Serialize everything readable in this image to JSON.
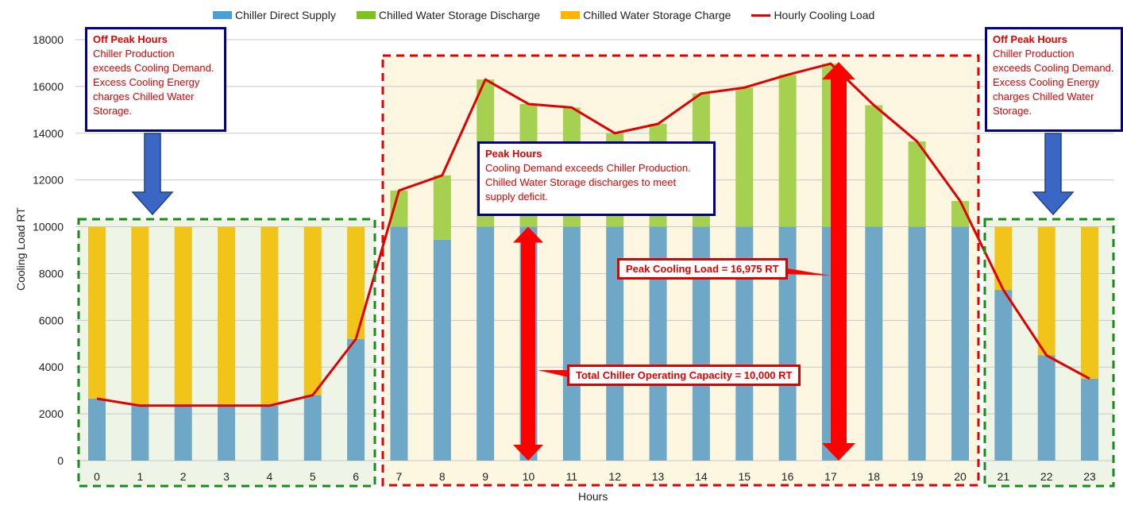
{
  "legend": [
    {
      "label": "Chiller Direct Supply",
      "color": "#6fa8c7"
    },
    {
      "label": "Chilled Water Storage Discharge",
      "color": "#9acd32"
    },
    {
      "label": "Chilled Water Storage Charge",
      "color": "#f0c419"
    },
    {
      "label": "Hourly Cooling Load",
      "color": "#e00000"
    }
  ],
  "axes": {
    "ylabel": "Cooling Load RT",
    "xlabel": "Hours",
    "yticks": [
      "0",
      "2000",
      "4000",
      "6000",
      "8000",
      "10000",
      "12000",
      "14000",
      "16000",
      "18000"
    ]
  },
  "callouts": {
    "off_peak_left": {
      "title": "Off Peak Hours",
      "lines": [
        "Chiller Production",
        "exceeds Cooling Demand.",
        "Excess Cooling Energy",
        "charges Chilled Water",
        "Storage."
      ]
    },
    "off_peak_right": {
      "title": "Off Peak Hours",
      "lines": [
        "Chiller Production",
        "exceeds Cooling Demand.",
        "Excess Cooling Energy",
        "charges Chilled Water",
        "Storage."
      ]
    },
    "peak": {
      "title": "Peak Hours",
      "lines": [
        "Cooling Demand exceeds Chiller Production.",
        "Chilled Water Storage discharges to meet",
        "supply deficit."
      ]
    },
    "peak_load_label": "Peak Cooling Load = 16,975 RT",
    "capacity_label": "Total Chiller Operating Capacity = 10,000 RT"
  },
  "chart_data": {
    "type": "bar",
    "stacked": true,
    "title": "",
    "xlabel": "Hours",
    "ylabel": "Cooling Load RT",
    "ylim": [
      0,
      18000
    ],
    "grid": true,
    "legend_position": "top",
    "categories": [
      "0",
      "1",
      "2",
      "3",
      "4",
      "5",
      "6",
      "7",
      "8",
      "9",
      "10",
      "11",
      "12",
      "13",
      "14",
      "15",
      "16",
      "17",
      "18",
      "19",
      "20",
      "21",
      "22",
      "23"
    ],
    "series": [
      {
        "name": "Chiller Direct Supply",
        "type": "bar",
        "values": [
          2650,
          2350,
          2350,
          2350,
          2350,
          2800,
          5200,
          10000,
          9450,
          10000,
          10000,
          10000,
          10000,
          10000,
          10000,
          10000,
          10000,
          10000,
          10000,
          10000,
          10000,
          7300,
          4500,
          3500
        ]
      },
      {
        "name": "Chilled Water Storage Discharge",
        "type": "bar",
        "values": [
          0,
          0,
          0,
          0,
          0,
          0,
          0,
          1550,
          2750,
          6300,
          5250,
          5100,
          4000,
          4400,
          5700,
          5950,
          6500,
          6975,
          5200,
          3650,
          1100,
          0,
          0,
          0
        ]
      },
      {
        "name": "Chilled Water Storage Charge",
        "type": "bar",
        "values": [
          7350,
          7650,
          7650,
          7650,
          7650,
          7200,
          4800,
          0,
          0,
          0,
          0,
          0,
          0,
          0,
          0,
          0,
          0,
          0,
          0,
          0,
          0,
          2700,
          5500,
          6500
        ]
      },
      {
        "name": "Hourly Cooling Load",
        "type": "line",
        "values": [
          2650,
          2350,
          2350,
          2350,
          2350,
          2800,
          5200,
          11550,
          12200,
          16300,
          15250,
          15100,
          14000,
          14400,
          15700,
          15950,
          16500,
          16975,
          15200,
          13650,
          11100,
          7300,
          4500,
          3500
        ]
      }
    ],
    "annotations": [
      {
        "text": "Off Peak Hours",
        "range": [
          0,
          6
        ]
      },
      {
        "text": "Peak Hours",
        "range": [
          7,
          20
        ]
      },
      {
        "text": "Off Peak Hours",
        "range": [
          21,
          23
        ]
      },
      {
        "text": "Peak Cooling Load = 16,975 RT",
        "x": 17
      },
      {
        "text": "Total Chiller Operating Capacity = 10,000 RT",
        "x": 10
      }
    ]
  }
}
